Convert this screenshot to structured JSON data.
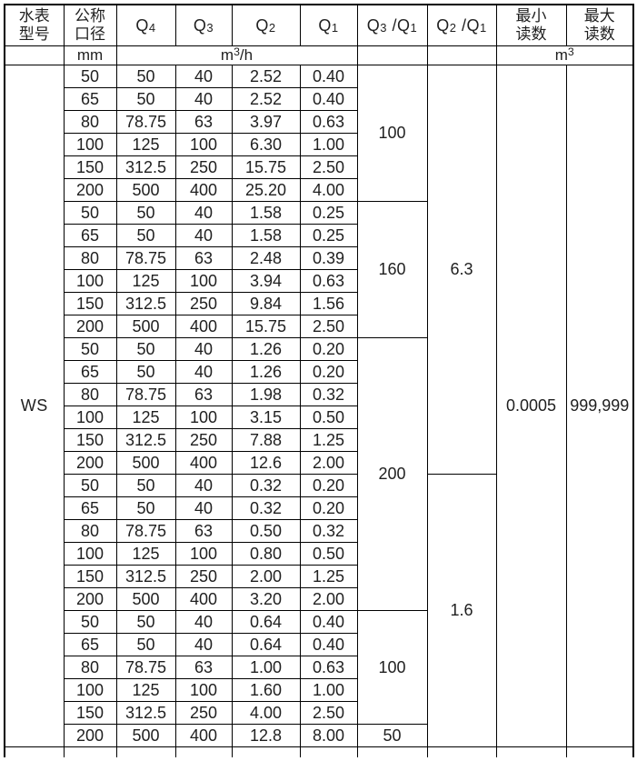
{
  "table": {
    "header": {
      "col_meter_model": "水表\n型号",
      "col_diameter": "公称\n口径",
      "col_q4": "Q₄",
      "col_q3": "Q₃",
      "col_q2": "Q₂",
      "col_q1": "Q₁",
      "col_q3_q1": "Q₃ /Q₁",
      "col_q2_q1": "Q₂ /Q₁",
      "col_min_reading": "最小\n读数",
      "col_max_reading": "最大\n读数",
      "unit_diameter": "mm",
      "unit_flow": "m³/h",
      "unit_reading": "m³"
    },
    "meter_model": "WS",
    "min_reading": "0.0005",
    "max_reading": "999,999",
    "rows": [
      [
        "50",
        "50",
        "40",
        "2.52",
        "0.40"
      ],
      [
        "65",
        "50",
        "40",
        "2.52",
        "0.40"
      ],
      [
        "80",
        "78.75",
        "63",
        "3.97",
        "0.63"
      ],
      [
        "100",
        "125",
        "100",
        "6.30",
        "1.00"
      ],
      [
        "150",
        "312.5",
        "250",
        "15.75",
        "2.50"
      ],
      [
        "200",
        "500",
        "400",
        "25.20",
        "4.00"
      ],
      [
        "50",
        "50",
        "40",
        "1.58",
        "0.25"
      ],
      [
        "65",
        "50",
        "40",
        "1.58",
        "0.25"
      ],
      [
        "80",
        "78.75",
        "63",
        "2.48",
        "0.39"
      ],
      [
        "100",
        "125",
        "100",
        "3.94",
        "0.63"
      ],
      [
        "150",
        "312.5",
        "250",
        "9.84",
        "1.56"
      ],
      [
        "200",
        "500",
        "400",
        "15.75",
        "2.50"
      ],
      [
        "50",
        "50",
        "40",
        "1.26",
        "0.20"
      ],
      [
        "65",
        "50",
        "40",
        "1.26",
        "0.20"
      ],
      [
        "80",
        "78.75",
        "63",
        "1.98",
        "0.32"
      ],
      [
        "100",
        "125",
        "100",
        "3.15",
        "0.50"
      ],
      [
        "150",
        "312.5",
        "250",
        "7.88",
        "1.25"
      ],
      [
        "200",
        "500",
        "400",
        "12.6",
        "2.00"
      ],
      [
        "50",
        "50",
        "40",
        "0.32",
        "0.20"
      ],
      [
        "65",
        "50",
        "40",
        "0.32",
        "0.20"
      ],
      [
        "80",
        "78.75",
        "63",
        "0.50",
        "0.32"
      ],
      [
        "100",
        "125",
        "100",
        "0.80",
        "0.50"
      ],
      [
        "150",
        "312.5",
        "250",
        "2.00",
        "1.25"
      ],
      [
        "200",
        "500",
        "400",
        "3.20",
        "2.00"
      ],
      [
        "50",
        "50",
        "40",
        "0.64",
        "0.40"
      ],
      [
        "65",
        "50",
        "40",
        "0.64",
        "0.40"
      ],
      [
        "80",
        "78.75",
        "63",
        "1.00",
        "0.63"
      ],
      [
        "100",
        "125",
        "100",
        "1.60",
        "1.00"
      ],
      [
        "150",
        "312.5",
        "250",
        "4.00",
        "2.50"
      ],
      [
        "200",
        "500",
        "400",
        "12.8",
        "8.00"
      ]
    ],
    "q3_q1_spans": [
      {
        "value": "100",
        "rows": 6
      },
      {
        "value": "160",
        "rows": 6
      },
      {
        "value": "200",
        "rows": 12
      },
      {
        "value": "100",
        "rows": 5
      },
      {
        "value": "50",
        "rows": 1
      }
    ],
    "q2_q1_spans": [
      {
        "value": "6.3",
        "rows": 18
      },
      {
        "value": "1.6",
        "rows": 12
      }
    ],
    "colors": {
      "border": "#000000",
      "text": "#1f1f1f",
      "background": "#ffffff"
    }
  }
}
